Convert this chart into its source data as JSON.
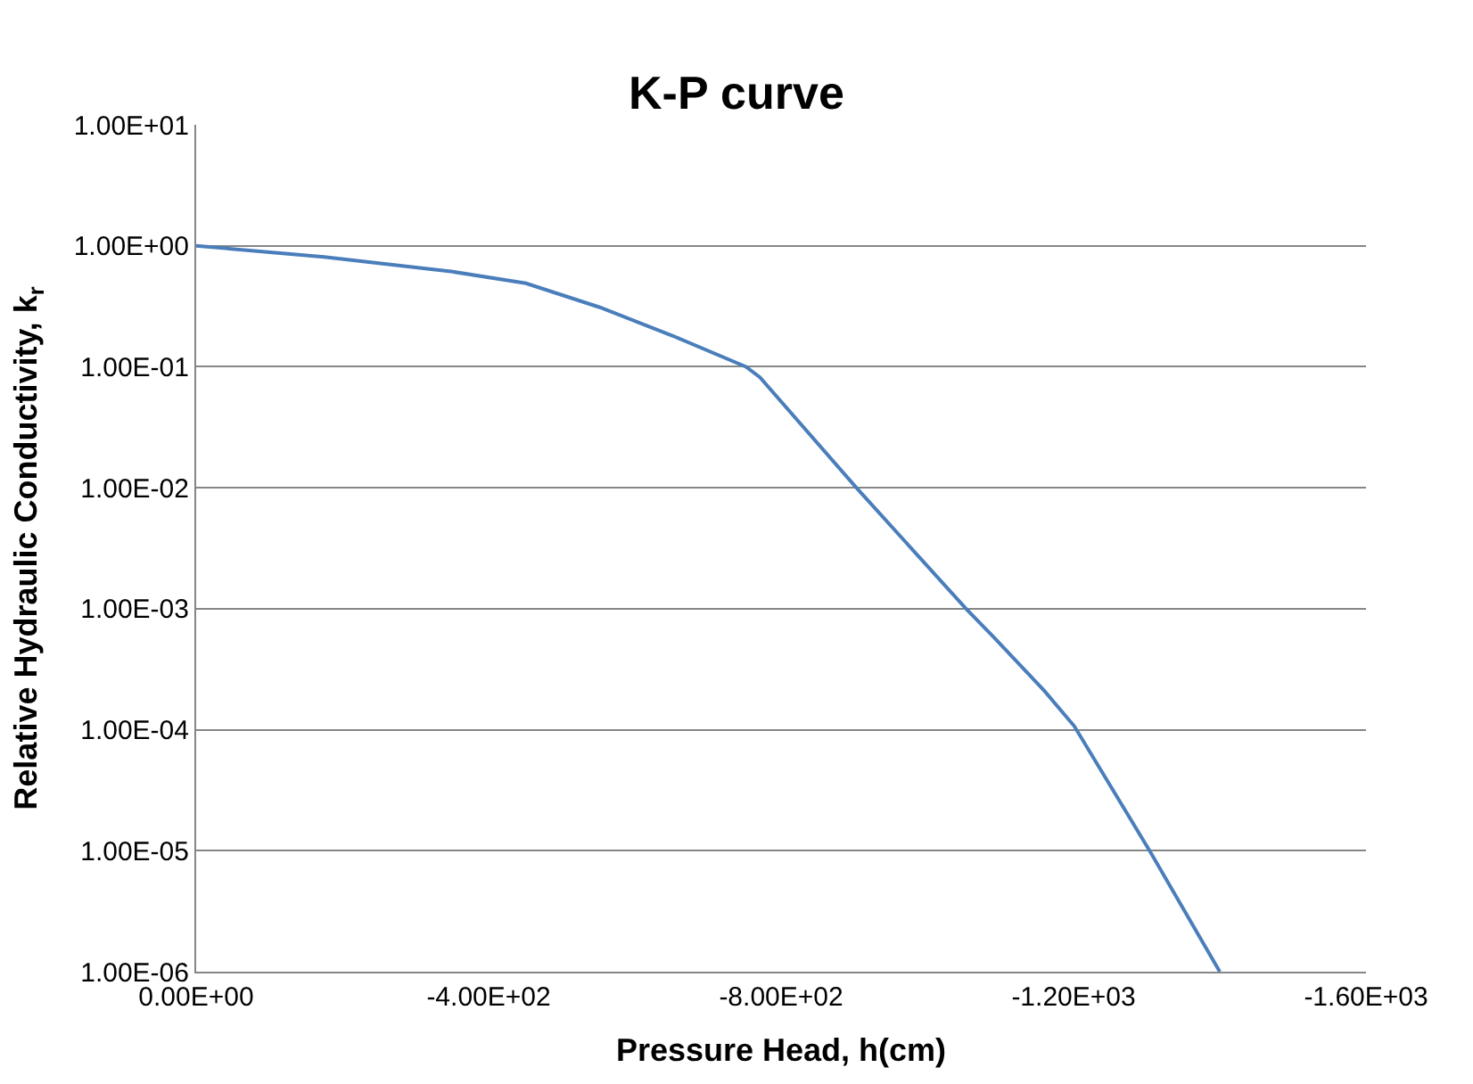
{
  "chart_data": {
    "type": "line",
    "title": "K-P curve",
    "xlabel": "Pressure Head, h(cm)",
    "ylabel": "Relative Hydraulic Conductivity, k$_{r}$",
    "x": [
      0,
      -175,
      -351,
      -451,
      -552,
      -652,
      -752,
      -771,
      -903,
      -1053,
      -1091,
      -1160,
      -1201,
      -1304,
      -1400
    ],
    "series": [
      {
        "color": "#4a7ebb",
        "values": [
          1,
          0.81,
          0.61,
          0.49,
          0.31,
          0.18,
          0.1,
          0.082,
          0.01,
          0.001,
          0.00058,
          0.00021,
          0.000107,
          1e-05,
          1e-06
        ]
      }
    ],
    "log": "y",
    "grid": "y",
    "legend": false,
    "marker": "none",
    "line_style": "solid",
    "xlim": [
      0,
      -1600
    ],
    "xticks": [
      {
        "value": 0,
        "label": "0.00E+00"
      },
      {
        "value": -400,
        "label": "-4.00E+02"
      },
      {
        "value": -800,
        "label": "-8.00E+02"
      },
      {
        "value": -1200,
        "label": "-1.20E+03"
      },
      {
        "value": -1600,
        "label": "-1.60E+03"
      }
    ],
    "ylim": [
      1e-06,
      10
    ],
    "yticks": [
      {
        "value": 10,
        "label": "1.00E+01"
      },
      {
        "value": 1,
        "label": "1.00E+00"
      },
      {
        "value": 0.1,
        "label": "1.00E-01"
      },
      {
        "value": 0.01,
        "label": "1.00E-02"
      },
      {
        "value": 0.001,
        "label": "1.00E-03"
      },
      {
        "value": 0.0001,
        "label": "1.00E-04"
      },
      {
        "value": 1e-05,
        "label": "1.00E-05"
      },
      {
        "value": 1e-06,
        "label": "1.00E-06"
      }
    ]
  }
}
